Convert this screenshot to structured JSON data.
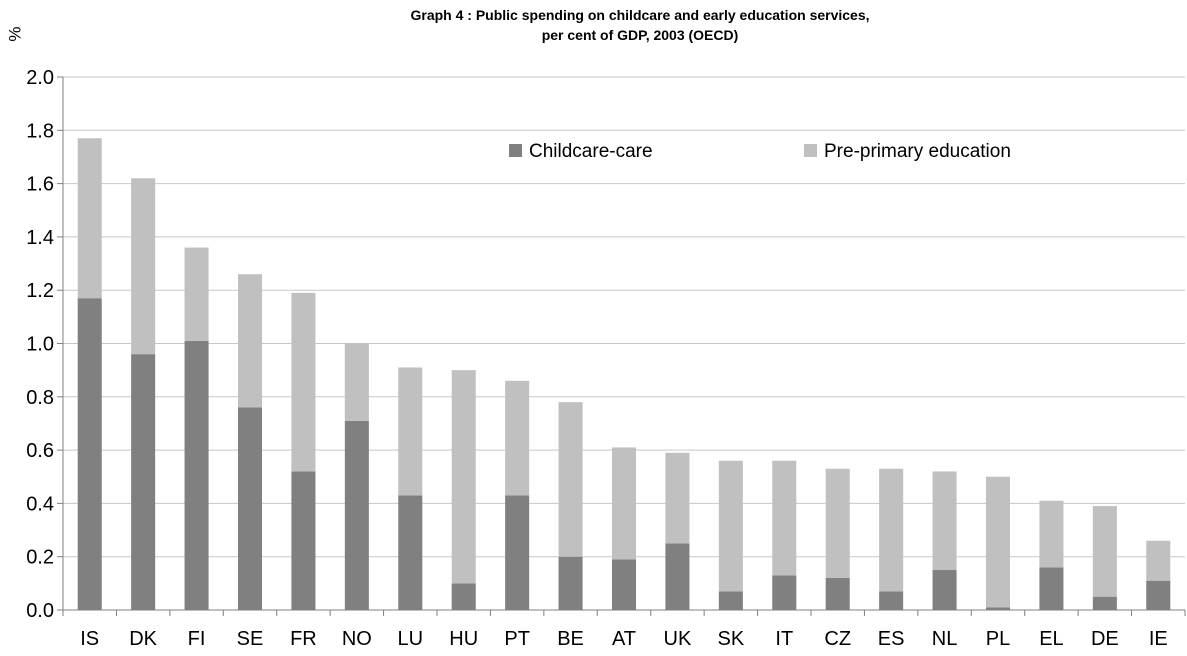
{
  "chart_data": {
    "type": "bar",
    "stacked": true,
    "title": "Graph 4 : Public spending on childcare and early education services,",
    "subtitle": "per cent of GDP, 2003 (OECD)",
    "ylabel": "%",
    "xlabel": "",
    "ylim": [
      0,
      2.0
    ],
    "yticks": [
      "0.0",
      "0.2",
      "0.4",
      "0.6",
      "0.8",
      "1.0",
      "1.2",
      "1.4",
      "1.6",
      "1.8",
      "2.0"
    ],
    "grid": true,
    "legend_position": "top-right",
    "categories": [
      "IS",
      "DK",
      "FI",
      "SE",
      "FR",
      "NO",
      "LU",
      "HU",
      "PT",
      "BE",
      "AT",
      "UK",
      "SK",
      "IT",
      "CZ",
      "ES",
      "NL",
      "PL",
      "EL",
      "DE",
      "IE"
    ],
    "series": [
      {
        "name": "Childcare-care",
        "color": "#808080",
        "values": [
          1.17,
          0.96,
          1.01,
          0.76,
          0.52,
          0.71,
          0.43,
          0.1,
          0.43,
          0.2,
          0.19,
          0.25,
          0.07,
          0.13,
          0.12,
          0.07,
          0.15,
          0.01,
          0.16,
          0.05,
          0.11
        ]
      },
      {
        "name": "Pre-primary education",
        "color": "#c0c0c0",
        "values": [
          0.6,
          0.66,
          0.35,
          0.5,
          0.67,
          0.29,
          0.48,
          0.8,
          0.43,
          0.58,
          0.42,
          0.34,
          0.49,
          0.43,
          0.41,
          0.46,
          0.37,
          0.49,
          0.25,
          0.34,
          0.15
        ]
      }
    ]
  }
}
